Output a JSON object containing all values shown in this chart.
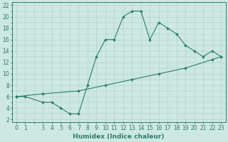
{
  "line1_x": [
    0,
    1,
    3,
    4,
    5,
    6,
    7,
    8,
    9,
    10,
    11,
    12,
    13,
    14,
    15,
    16,
    17,
    18,
    19,
    20,
    21,
    22,
    23
  ],
  "line1_y": [
    6,
    6,
    5,
    5,
    4,
    3,
    3,
    8,
    13,
    16,
    16,
    20,
    21,
    21,
    16,
    19,
    18,
    17,
    15,
    14,
    13,
    14,
    13
  ],
  "line2_x": [
    0,
    3,
    7,
    10,
    13,
    16,
    19,
    22,
    23
  ],
  "line2_y": [
    6,
    6.5,
    7,
    8,
    9,
    10,
    11,
    12.5,
    13
  ],
  "line_color": "#2e7d6e",
  "bg_color": "#cce8e0",
  "grid_color": "#aacfc7",
  "xlabel": "Humidex (Indice chaleur)",
  "xlim": [
    -0.5,
    23.5
  ],
  "ylim": [
    1.5,
    22.5
  ],
  "xtick_labels": [
    "0",
    "1",
    "",
    "3",
    "4",
    "5",
    "6",
    "7",
    "8",
    "9",
    "10",
    "11",
    "12",
    "13",
    "14",
    "15",
    "16",
    "17",
    "18",
    "19",
    "20",
    "21",
    "22",
    "23"
  ],
  "xtick_pos": [
    0,
    1,
    2,
    3,
    4,
    5,
    6,
    7,
    8,
    9,
    10,
    11,
    12,
    13,
    14,
    15,
    16,
    17,
    18,
    19,
    20,
    21,
    22,
    23
  ],
  "yticks": [
    2,
    4,
    6,
    8,
    10,
    12,
    14,
    16,
    18,
    20,
    22
  ],
  "tick_fontsize": 5.5,
  "xlabel_fontsize": 6.5
}
